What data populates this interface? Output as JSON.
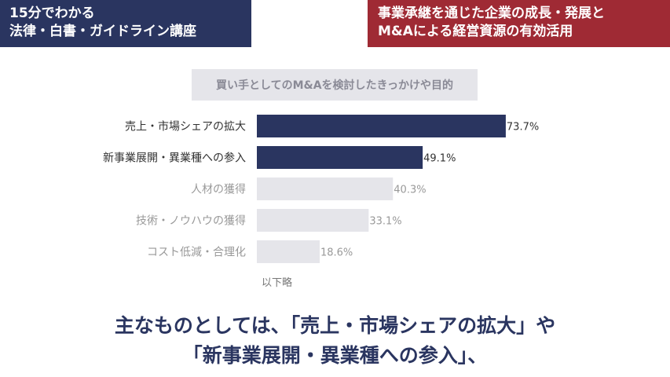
{
  "header": {
    "left_badge": {
      "line1": "15分でわかる",
      "line2": "法律・白書・ガイドライン講座"
    },
    "right_badge": {
      "line1": "事業承継を通じた企業の成長・発展と",
      "line2": "M&Aによる経営資源の有効活用"
    }
  },
  "colors": {
    "navy": "#2a3560",
    "red": "#9f2a34",
    "bar_gray": "#e5e5ea",
    "label_dark": "#333333",
    "label_muted": "#999999"
  },
  "chart_data": {
    "type": "bar",
    "orientation": "horizontal",
    "title": "買い手としてのM&Aを検討したきっかけや目的",
    "categories": [
      "売上・市場シェアの拡大",
      "新事業展開・異業種への参入",
      "人材の獲得",
      "技術・ノウハウの獲得",
      "コスト低減・合理化"
    ],
    "values": [
      73.7,
      49.1,
      40.3,
      33.1,
      18.6
    ],
    "value_labels": [
      "73.7%",
      "49.1%",
      "40.3%",
      "33.1%",
      "18.6%"
    ],
    "highlighted": [
      true,
      true,
      false,
      false,
      false
    ],
    "unit": "%",
    "xlim": [
      0,
      100
    ],
    "grid": false,
    "legend": "none",
    "note": "以下略"
  },
  "bottom_text": {
    "line1": "主なものとしては、「売上・市場シェアの拡大」や",
    "line2": "「新事業展開・異業種への参入」、"
  }
}
